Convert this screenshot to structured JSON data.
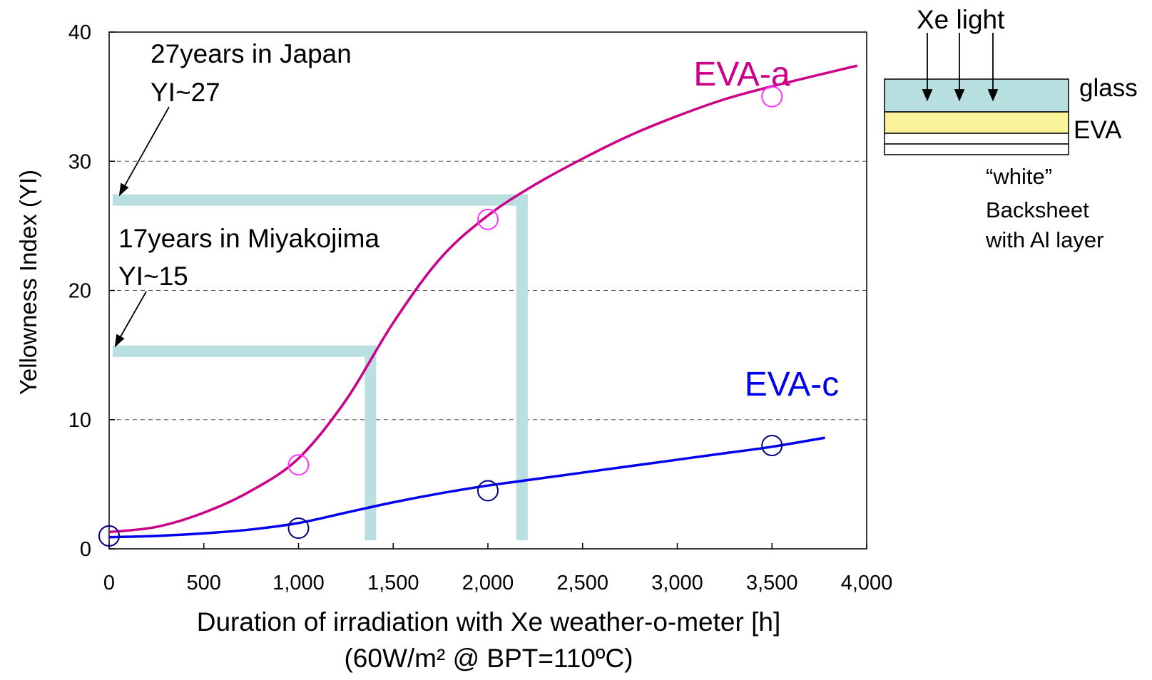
{
  "chart_data": {
    "type": "line",
    "xlabel": "Duration of irradiation with Xe weather-o-meter [h]",
    "xlabel2": "(60W/m² @ BPT=110ºC)",
    "ylabel": "Yellowness Index (YI)",
    "xlim": [
      0,
      4000
    ],
    "ylim": [
      0,
      40
    ],
    "xticks": [
      0,
      500,
      1000,
      1500,
      2000,
      2500,
      3000,
      3500,
      4000
    ],
    "xtick_labels": [
      "0",
      "500",
      "1,000",
      "1,500",
      "2,000",
      "2,500",
      "3,000",
      "3,500",
      "4,000"
    ],
    "yticks": [
      0,
      10,
      20,
      30,
      40
    ],
    "ytick_labels": [
      "0",
      "10",
      "20",
      "30",
      "40"
    ],
    "grid": "horizontal dashed",
    "series": [
      {
        "name": "EVA-a",
        "color": "#cc0088",
        "marker_color": "#ff33ff",
        "points": [
          {
            "x": 0,
            "y": 1.0
          },
          {
            "x": 1000,
            "y": 6.5
          },
          {
            "x": 2000,
            "y": 25.5
          },
          {
            "x": 3500,
            "y": 35.0
          }
        ],
        "curve": [
          [
            0,
            1.3
          ],
          [
            250,
            1.7
          ],
          [
            500,
            2.8
          ],
          [
            750,
            4.5
          ],
          [
            1000,
            7.0
          ],
          [
            1250,
            11.5
          ],
          [
            1500,
            17.5
          ],
          [
            1750,
            22.5
          ],
          [
            2000,
            25.8
          ],
          [
            2250,
            28.2
          ],
          [
            2500,
            30.2
          ],
          [
            2750,
            32.0
          ],
          [
            3000,
            33.5
          ],
          [
            3250,
            34.8
          ],
          [
            3500,
            35.8
          ],
          [
            3750,
            36.7
          ],
          [
            3950,
            37.4
          ]
        ]
      },
      {
        "name": "EVA-c",
        "color": "#0000ee",
        "marker_color": "#000080",
        "points": [
          {
            "x": 0,
            "y": 1.0
          },
          {
            "x": 1000,
            "y": 1.6
          },
          {
            "x": 2000,
            "y": 4.5
          },
          {
            "x": 3500,
            "y": 8.0
          }
        ],
        "curve": [
          [
            0,
            0.9
          ],
          [
            250,
            1.0
          ],
          [
            500,
            1.2
          ],
          [
            750,
            1.5
          ],
          [
            1000,
            2.0
          ],
          [
            1250,
            2.8
          ],
          [
            1500,
            3.6
          ],
          [
            1750,
            4.3
          ],
          [
            2000,
            4.9
          ],
          [
            2250,
            5.4
          ],
          [
            2500,
            5.9
          ],
          [
            2750,
            6.4
          ],
          [
            3000,
            6.9
          ],
          [
            3250,
            7.4
          ],
          [
            3500,
            7.9
          ],
          [
            3780,
            8.6
          ]
        ]
      }
    ],
    "reference_markers": [
      {
        "label": "27years in Japan",
        "label2": "YI~27",
        "yi": 27,
        "hours": 2180
      },
      {
        "label": "17years in Miyakojima",
        "label2": "YI~15",
        "yi": 15.3,
        "hours": 1380
      }
    ],
    "reference_color": "#b9dfe0"
  },
  "inset": {
    "light_label": "Xe light",
    "glass_label": "glass",
    "eva_label": "EVA",
    "backsheet_line1": "“white”",
    "backsheet_line2": "Backsheet",
    "backsheet_line3": "with Al layer",
    "glass_color": "#b7dfe0",
    "eva_color": "#fbf39a"
  }
}
